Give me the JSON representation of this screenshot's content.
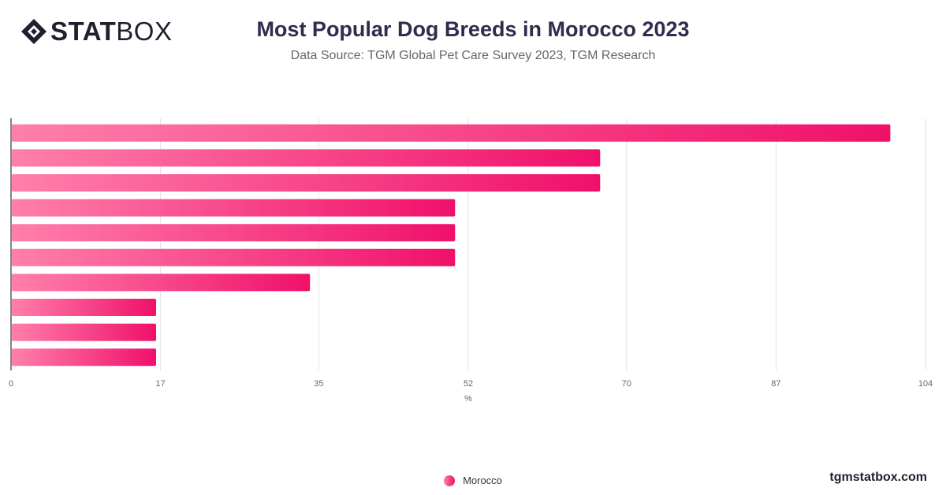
{
  "brand": {
    "logo_bold": "STAT",
    "logo_light": "BOX",
    "site": "tgmstatbox.com"
  },
  "header": {
    "title": "Most Popular Dog Breeds in Morocco 2023",
    "subtitle": "Data Source: TGM Global Pet Care Survey 2023, TGM Research"
  },
  "legend": {
    "label": "Morocco",
    "color_start": "#ff7fab",
    "color_end": "#f0106a"
  },
  "chart_data": {
    "type": "bar",
    "orientation": "horizontal",
    "xlabel": "%",
    "xlim": [
      0,
      104
    ],
    "xticks": [
      0,
      17,
      35,
      52,
      70,
      87,
      104
    ],
    "grid": true,
    "legend_position": "bottom",
    "series": [
      {
        "name": "Morocco",
        "values": [
          100,
          67,
          67,
          50.5,
          50.5,
          50.5,
          34,
          16.5,
          16.5,
          16.5
        ]
      }
    ]
  }
}
